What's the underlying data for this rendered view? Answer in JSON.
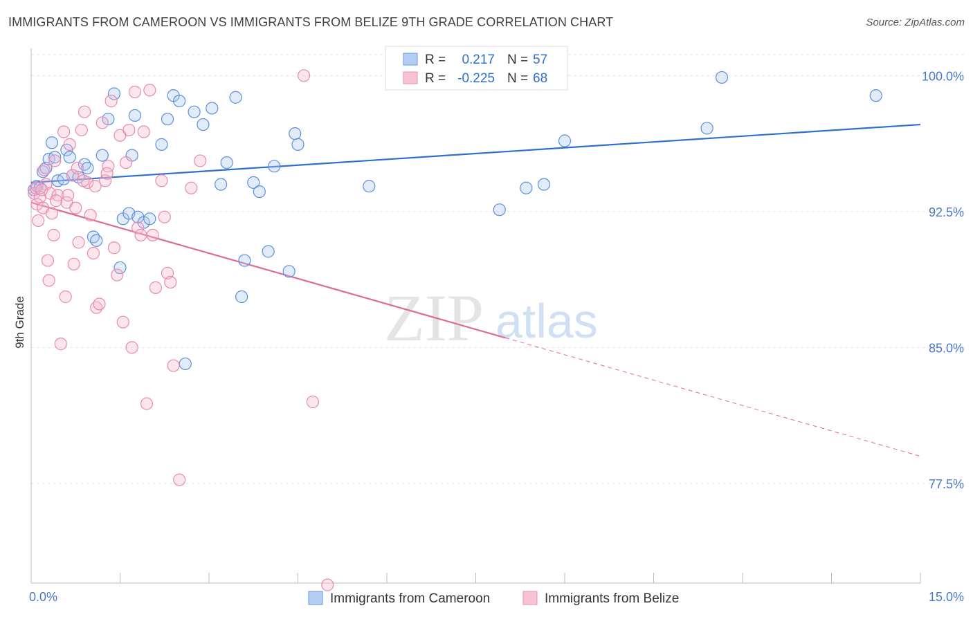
{
  "title": "IMMIGRANTS FROM CAMEROON VS IMMIGRANTS FROM BELIZE 9TH GRADE CORRELATION CHART",
  "source": "Source: ZipAtlas.com",
  "watermark_zip": "ZIP",
  "watermark_atlas": "atlas",
  "colors": {
    "blue": "#2f6fd0",
    "blue_fill": "#a9c6f0",
    "pink": "#e06a96",
    "pink_fill": "#f5b8cc",
    "axis_text": "#4a78c9"
  },
  "chart_data": {
    "type": "scatter",
    "title": "IMMIGRANTS FROM CAMEROON VS IMMIGRANTS FROM BELIZE 9TH GRADE CORRELATION CHART",
    "xlabel": "",
    "ylabel": "9th Grade",
    "xlim": [
      0,
      15
    ],
    "ylim": [
      72.0,
      101.5
    ],
    "x_tick_labels": [
      "0.0%",
      "15.0%"
    ],
    "y_ticks": [
      100.0,
      92.5,
      85.0,
      77.5
    ],
    "y_tick_labels": [
      "100.0%",
      "92.5%",
      "85.0%",
      "77.5%"
    ],
    "legend": [
      {
        "r_label": "R =",
        "r_value": "0.217",
        "n_label": "N =",
        "n_value": "57"
      },
      {
        "r_label": "R =",
        "r_value": "-0.225",
        "n_label": "N =",
        "n_value": "68"
      }
    ],
    "series": [
      {
        "name": "Immigrants from Cameroon",
        "color": "#2f6fd0",
        "trend": {
          "x0": 0,
          "y0": 94.1,
          "x1": 15,
          "y1": 97.3,
          "solid_until": 15
        },
        "points": [
          [
            0.05,
            93.7
          ],
          [
            0.1,
            93.9
          ],
          [
            0.15,
            93.8
          ],
          [
            0.2,
            94.7
          ],
          [
            0.25,
            94.9
          ],
          [
            0.3,
            95.4
          ],
          [
            0.35,
            96.3
          ],
          [
            0.4,
            95.5
          ],
          [
            0.45,
            94.2
          ],
          [
            0.55,
            94.3
          ],
          [
            0.6,
            95.9
          ],
          [
            0.65,
            95.5
          ],
          [
            0.7,
            94.5
          ],
          [
            0.8,
            94.4
          ],
          [
            0.9,
            95.1
          ],
          [
            0.95,
            94.9
          ],
          [
            1.05,
            91.1
          ],
          [
            1.1,
            90.9
          ],
          [
            1.2,
            95.6
          ],
          [
            1.3,
            97.6
          ],
          [
            1.4,
            99.0
          ],
          [
            1.55,
            92.1
          ],
          [
            1.65,
            92.4
          ],
          [
            1.7,
            95.6
          ],
          [
            1.75,
            97.8
          ],
          [
            1.8,
            92.2
          ],
          [
            1.9,
            91.9
          ],
          [
            2.0,
            92.1
          ],
          [
            2.2,
            96.2
          ],
          [
            2.3,
            97.6
          ],
          [
            2.4,
            98.9
          ],
          [
            2.5,
            98.6
          ],
          [
            2.6,
            84.1
          ],
          [
            2.75,
            98.0
          ],
          [
            2.9,
            97.3
          ],
          [
            3.05,
            98.2
          ],
          [
            3.2,
            94.0
          ],
          [
            3.3,
            95.2
          ],
          [
            3.45,
            98.8
          ],
          [
            3.55,
            87.8
          ],
          [
            3.6,
            89.8
          ],
          [
            3.75,
            94.1
          ],
          [
            3.85,
            93.6
          ],
          [
            4.0,
            90.3
          ],
          [
            4.35,
            89.2
          ],
          [
            4.45,
            96.8
          ],
          [
            4.5,
            96.2
          ],
          [
            5.7,
            93.9
          ],
          [
            7.9,
            92.6
          ],
          [
            8.35,
            93.8
          ],
          [
            8.65,
            94.0
          ],
          [
            9.0,
            96.4
          ],
          [
            11.4,
            97.1
          ],
          [
            11.65,
            99.9
          ],
          [
            14.25,
            98.9
          ],
          [
            1.5,
            89.4
          ],
          [
            4.1,
            95.0
          ]
        ]
      },
      {
        "name": "Immigrants from Belize",
        "color": "#e06a96",
        "trend": {
          "x0": 0,
          "y0": 93.0,
          "x1": 15,
          "y1": 79.0,
          "solid_until": 8.0
        },
        "points": [
          [
            0.05,
            93.5
          ],
          [
            0.08,
            93.8
          ],
          [
            0.1,
            92.9
          ],
          [
            0.12,
            92.0
          ],
          [
            0.15,
            93.3
          ],
          [
            0.2,
            92.7
          ],
          [
            0.25,
            94.0
          ],
          [
            0.28,
            89.8
          ],
          [
            0.3,
            88.7
          ],
          [
            0.32,
            93.5
          ],
          [
            0.35,
            92.4
          ],
          [
            0.38,
            91.2
          ],
          [
            0.4,
            95.3
          ],
          [
            0.45,
            93.4
          ],
          [
            0.5,
            85.2
          ],
          [
            0.55,
            96.9
          ],
          [
            0.58,
            87.8
          ],
          [
            0.6,
            93.0
          ],
          [
            0.65,
            96.2
          ],
          [
            0.7,
            94.5
          ],
          [
            0.72,
            89.6
          ],
          [
            0.75,
            92.7
          ],
          [
            0.8,
            90.8
          ],
          [
            0.85,
            97.0
          ],
          [
            0.9,
            98.0
          ],
          [
            0.95,
            94.1
          ],
          [
            1.0,
            92.3
          ],
          [
            1.05,
            90.2
          ],
          [
            1.1,
            87.2
          ],
          [
            1.15,
            87.4
          ],
          [
            1.2,
            97.4
          ],
          [
            1.25,
            94.2
          ],
          [
            1.3,
            95.0
          ],
          [
            1.35,
            98.6
          ],
          [
            1.4,
            90.5
          ],
          [
            1.45,
            89.0
          ],
          [
            1.5,
            96.7
          ],
          [
            1.55,
            86.4
          ],
          [
            1.6,
            95.2
          ],
          [
            1.65,
            97.0
          ],
          [
            1.7,
            85.0
          ],
          [
            1.75,
            99.1
          ],
          [
            1.8,
            91.6
          ],
          [
            1.85,
            91.2
          ],
          [
            1.9,
            96.9
          ],
          [
            1.95,
            81.9
          ],
          [
            2.0,
            99.2
          ],
          [
            2.05,
            91.2
          ],
          [
            2.1,
            88.3
          ],
          [
            2.2,
            94.2
          ],
          [
            2.25,
            92.2
          ],
          [
            2.3,
            89.1
          ],
          [
            2.35,
            88.6
          ],
          [
            2.4,
            84.0
          ],
          [
            2.5,
            77.7
          ],
          [
            2.7,
            93.8
          ],
          [
            2.85,
            95.3
          ],
          [
            4.6,
            100.0
          ],
          [
            4.75,
            82.0
          ],
          [
            5.0,
            71.9
          ],
          [
            0.18,
            93.7
          ],
          [
            0.22,
            94.8
          ],
          [
            0.62,
            93.4
          ],
          [
            0.88,
            94.2
          ],
          [
            1.08,
            93.9
          ],
          [
            1.28,
            94.6
          ],
          [
            0.42,
            93.1
          ],
          [
            0.78,
            94.9
          ]
        ]
      }
    ]
  },
  "legend_bottom": [
    {
      "label": "Immigrants from Cameroon"
    },
    {
      "label": "Immigrants from Belize"
    }
  ]
}
